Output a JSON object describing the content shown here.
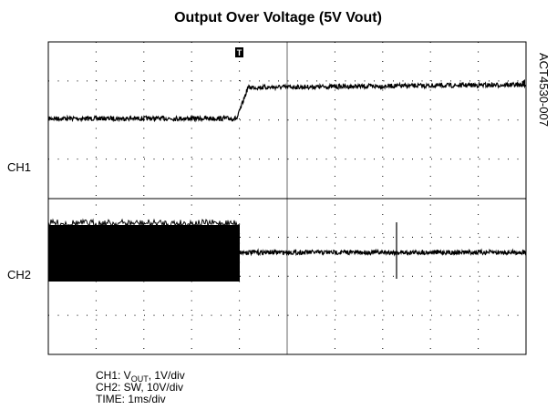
{
  "header": {
    "title": "Output Over Voltage (5V Vout)",
    "code": "ACT4530-007"
  },
  "channels": [
    "CH1",
    "CH2"
  ],
  "trigger": "T",
  "notes": {
    "ch1_prefix": "CH1: V",
    "ch1_sub": "OUT",
    "ch1_suffix": ", 1V/div",
    "ch2": "CH2: SW, 10V/div",
    "time": "TIME: 1ms/div"
  }
}
